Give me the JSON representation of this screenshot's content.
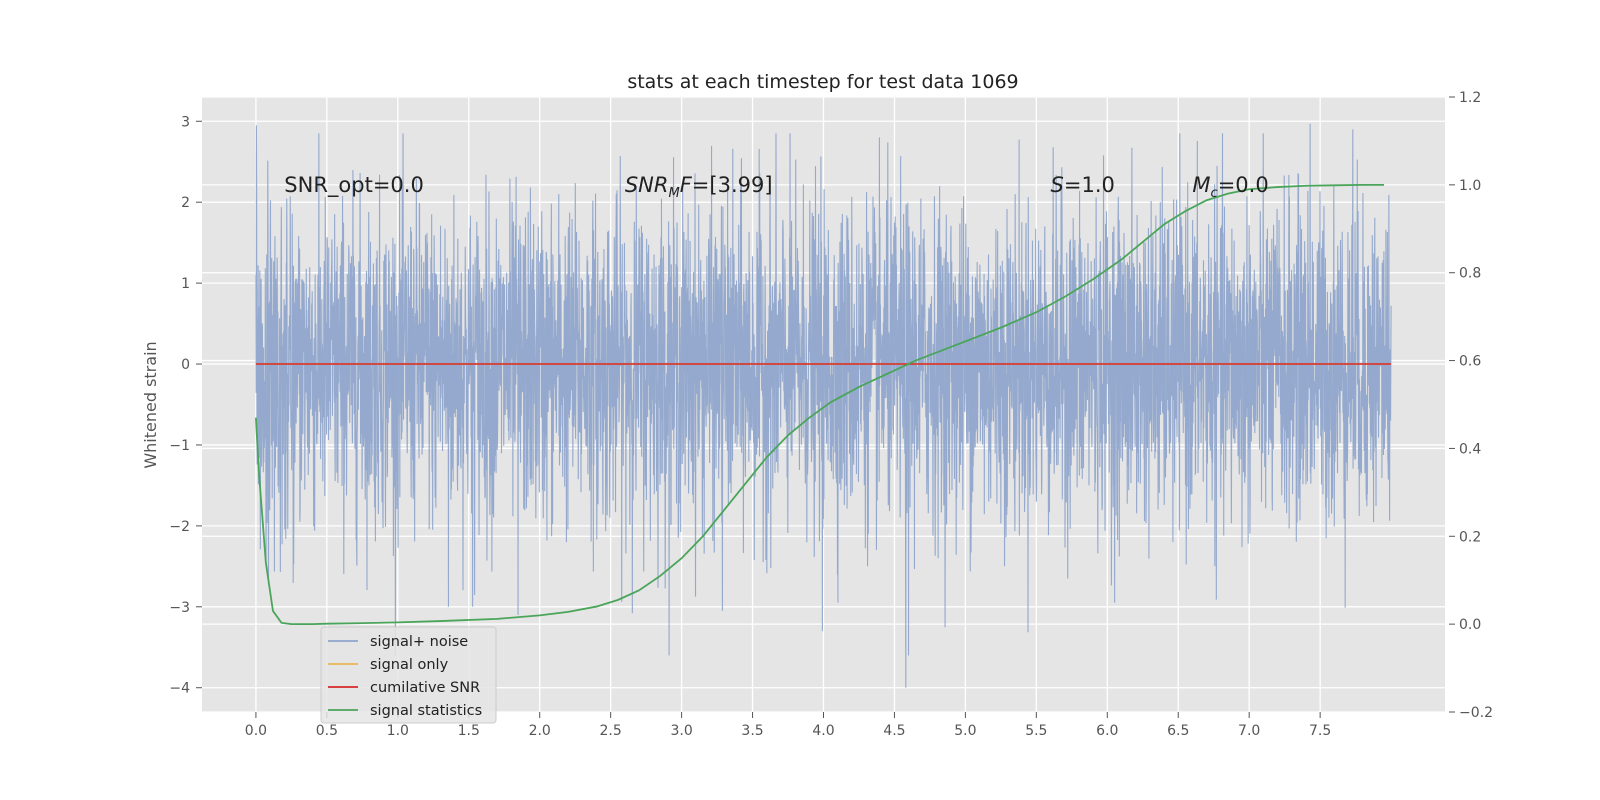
{
  "chart_data": {
    "type": "line",
    "title": "stats at each timestep for test data 1069",
    "ylabel": "Whitened strain",
    "xlabel": "",
    "xlim": [
      -0.38,
      8.38
    ],
    "ylim": [
      -4.3,
      3.3
    ],
    "y2lim": [
      -0.2,
      1.2
    ],
    "x_ticks": [
      0.0,
      0.5,
      1.0,
      1.5,
      2.0,
      2.5,
      3.0,
      3.5,
      4.0,
      4.5,
      5.0,
      5.5,
      6.0,
      6.5,
      7.0,
      7.5
    ],
    "x_tick_labels": [
      "0.0",
      "0.5",
      "1.0",
      "1.5",
      "2.0",
      "2.5",
      "3.0",
      "3.5",
      "4.0",
      "4.5",
      "5.0",
      "5.5",
      "6.0",
      "6.5",
      "7.0",
      "7.5"
    ],
    "y_ticks": [
      3,
      2,
      1,
      0,
      -1,
      -2,
      -3,
      -4
    ],
    "y_tick_labels": [
      "3",
      "2",
      "1",
      "0",
      "−1",
      "−2",
      "−3",
      "−4"
    ],
    "y2_ticks": [
      1.2,
      1.0,
      0.8,
      0.6,
      0.4,
      0.2,
      0.0,
      -0.2
    ],
    "y2_tick_labels": [
      "1.2",
      "1.0",
      "0.8",
      "0.6",
      "0.4",
      "0.2",
      "0.0",
      "−0.2"
    ],
    "grid": true,
    "legend_position": "lower-left",
    "annotations": [
      {
        "text": "SNR_opt=0.0",
        "x": 0.2,
        "y": 2.2
      },
      {
        "text": "SNR_MF=[3.99]",
        "x": 2.6,
        "y": 2.2
      },
      {
        "text": "S=1.0",
        "x": 5.6,
        "y": 2.2
      },
      {
        "text": "M_c=0.0",
        "x": 6.6,
        "y": 2.2
      }
    ],
    "series": [
      {
        "name": "signal+ noise",
        "color": "#8fa5cb",
        "axis": "left",
        "kind": "noise",
        "x_range": [
          0.0,
          8.0
        ],
        "approx_std": 0.98,
        "approx_max": 2.95,
        "approx_min": -4.0,
        "x": [
          0.0,
          0.003,
          1.357,
          1.528,
          1.847,
          3.288,
          3.993,
          4.58,
          4.6,
          7.43,
          7.73
        ],
        "values": [
          1.1,
          2.95,
          -3.0,
          -3.0,
          -3.1,
          -3.05,
          -3.3,
          -4.0,
          -3.6,
          2.97,
          2.9
        ]
      },
      {
        "name": "signal only",
        "color": "#e8b655",
        "axis": "left",
        "x": [
          0.0,
          8.0
        ],
        "values": [
          0.0,
          0.0
        ]
      },
      {
        "name": "cumilative SNR",
        "color": "#d62728",
        "axis": "left",
        "x": [
          0.0,
          8.0
        ],
        "values": [
          0.0,
          0.0
        ]
      },
      {
        "name": "signal statistics",
        "color": "#4aa55a",
        "axis": "right",
        "x": [
          0.0,
          0.02,
          0.07,
          0.12,
          0.18,
          0.25,
          0.3,
          0.4,
          0.5,
          0.7,
          1.0,
          1.3,
          1.7,
          2.0,
          2.2,
          2.4,
          2.55,
          2.7,
          2.85,
          3.0,
          3.15,
          3.3,
          3.45,
          3.6,
          3.75,
          3.9,
          4.05,
          4.25,
          4.45,
          4.65,
          4.85,
          5.05,
          5.25,
          5.5,
          5.7,
          5.9,
          6.1,
          6.25,
          6.4,
          6.55,
          6.7,
          6.85,
          7.0,
          7.2,
          7.4,
          7.6,
          7.8,
          7.95
        ],
        "values": [
          0.47,
          0.35,
          0.14,
          0.03,
          0.003,
          0.0,
          0.0,
          0.0,
          0.001,
          0.002,
          0.004,
          0.007,
          0.012,
          0.02,
          0.028,
          0.04,
          0.055,
          0.077,
          0.11,
          0.15,
          0.2,
          0.26,
          0.32,
          0.38,
          0.43,
          0.47,
          0.505,
          0.54,
          0.57,
          0.6,
          0.625,
          0.65,
          0.675,
          0.71,
          0.745,
          0.785,
          0.83,
          0.87,
          0.91,
          0.94,
          0.965,
          0.98,
          0.99,
          0.995,
          0.998,
          0.999,
          1.0,
          1.0
        ]
      }
    ]
  }
}
